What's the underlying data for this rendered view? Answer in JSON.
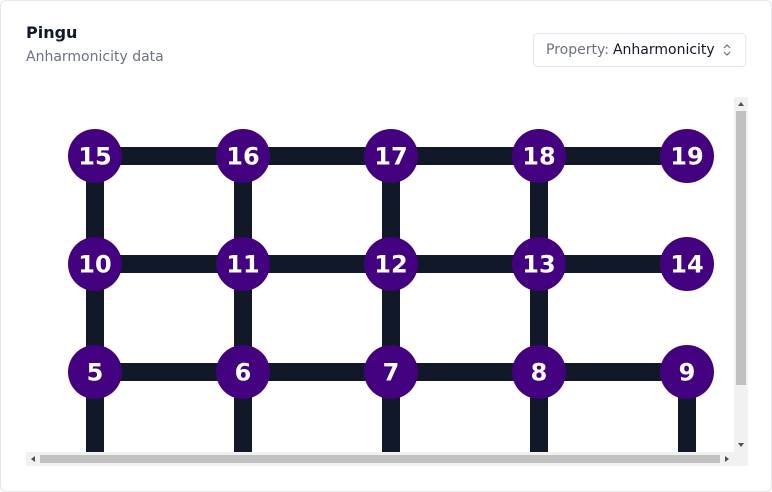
{
  "header": {
    "title": "Pingu",
    "subtitle": "Anharmonicity data"
  },
  "property_select": {
    "prefix": "Property:",
    "value": "Anharmonicity"
  },
  "colors": {
    "node": "#43007f",
    "edge": "#111827",
    "node_text": "#ffffff"
  },
  "qubits": [
    "5",
    "6",
    "7",
    "8",
    "9",
    "10",
    "11",
    "12",
    "13",
    "14",
    "15",
    "16",
    "17",
    "18",
    "19"
  ],
  "couplers": [
    [
      "15",
      "16"
    ],
    [
      "16",
      "17"
    ],
    [
      "17",
      "18"
    ],
    [
      "18",
      "19"
    ],
    [
      "10",
      "11"
    ],
    [
      "11",
      "12"
    ],
    [
      "12",
      "13"
    ],
    [
      "13",
      "14"
    ],
    [
      "5",
      "6"
    ],
    [
      "6",
      "7"
    ],
    [
      "7",
      "8"
    ],
    [
      "8",
      "9"
    ],
    [
      "15",
      "10"
    ],
    [
      "16",
      "11"
    ],
    [
      "17",
      "12"
    ],
    [
      "18",
      "13"
    ],
    [
      "10",
      "5"
    ],
    [
      "11",
      "6"
    ],
    [
      "12",
      "7"
    ],
    [
      "13",
      "8"
    ]
  ]
}
